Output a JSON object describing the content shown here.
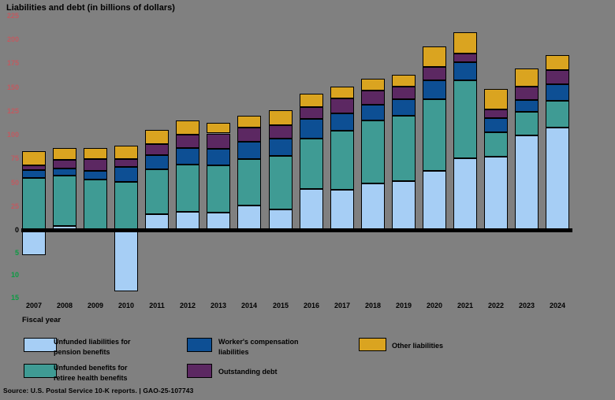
{
  "title": "Liabilities and debt (in billions of dollars)",
  "xlabel": "Fiscal year",
  "source": "Source: U.S. Postal Service 10-K reports.  |  GAO-25-107743",
  "colors": {
    "background": "#808080",
    "positive_tick_label": "#C05A60",
    "zero_tick_label": "#000000",
    "negative_tick_label": "#0C9B43",
    "pension": "#A6CEF5",
    "retiree_health": "#3F9B94",
    "workers_comp": "#0D4F94",
    "outstanding_debt": "#5C2862",
    "other": "#DAA420"
  },
  "axis": {
    "positive_ticks": [
      225,
      200,
      175,
      150,
      125,
      100,
      75,
      50,
      25
    ],
    "zero_label": "0",
    "negative_ticks": [
      5,
      10,
      15
    ]
  },
  "legend": [
    {
      "line1": "Unfunded liabilities for",
      "line2": "pension benefits",
      "series": "pension"
    },
    {
      "line1": "Unfunded benefits for",
      "line2": "retiree health benefits",
      "series": "retiree_health"
    },
    {
      "line1": "Worker's compensation",
      "line2": "liabilities",
      "series": "workers_comp"
    },
    {
      "line1": "Outstanding debt",
      "line2": "",
      "series": "outstanding_debt"
    },
    {
      "line1": "Other liabilities",
      "line2": "",
      "series": "other"
    }
  ],
  "chart_data": {
    "type": "bar",
    "stacked": true,
    "title": "Liabilities and debt (in billions of dollars)",
    "xlabel": "Fiscal year",
    "ylabel": "",
    "ylim": [
      -15,
      225
    ],
    "grid": false,
    "legend_position": "bottom",
    "axis_note": "Negative values (pension surpluses) are drawn on an expanded scale: positive axis 0-225 in steps of 25, negative axis 0-15 in steps of 5",
    "categories": [
      "2007",
      "2008",
      "2009",
      "2010",
      "2011",
      "2012",
      "2013",
      "2014",
      "2015",
      "2016",
      "2017",
      "2018",
      "2019",
      "2020",
      "2021",
      "2022",
      "2023",
      "2024"
    ],
    "series": [
      {
        "name": "Unfunded liabilities for pension benefits",
        "key": "pension",
        "values": [
          -5.5,
          3,
          0,
          -13.5,
          16,
          18,
          17.5,
          24.5,
          21,
          42,
          41,
          48,
          50.5,
          61,
          74.5,
          76.5,
          98.5,
          106.5
        ]
      },
      {
        "name": "Unfunded benefits for retiree health benefits",
        "key": "retiree_health",
        "values": [
          54,
          53,
          52,
          50,
          46.5,
          49.5,
          49.5,
          49,
          56,
          53,
          62.5,
          66.5,
          69,
          75.5,
          82,
          25,
          24.5,
          28
        ]
      },
      {
        "name": "Worker's compensation liabilities",
        "key": "workers_comp",
        "values": [
          8,
          8,
          9.5,
          15.5,
          15,
          17.5,
          17.5,
          18.5,
          18,
          20.5,
          18.5,
          16,
          17,
          20,
          19,
          15.5,
          12.5,
          18
        ]
      },
      {
        "name": "Outstanding debt",
        "key": "outstanding_debt",
        "values": [
          5,
          8.5,
          12,
          8.5,
          11.5,
          14.5,
          16,
          15,
          14.5,
          13,
          15.5,
          15,
          13,
          14,
          9,
          9,
          14,
          14.5
        ]
      },
      {
        "name": "Other liabilities",
        "key": "other",
        "values": [
          15,
          13,
          12,
          14,
          15,
          15,
          11.5,
          12.5,
          15,
          14,
          12.5,
          12.5,
          13,
          21,
          22,
          21,
          19.5,
          16
        ]
      }
    ]
  }
}
